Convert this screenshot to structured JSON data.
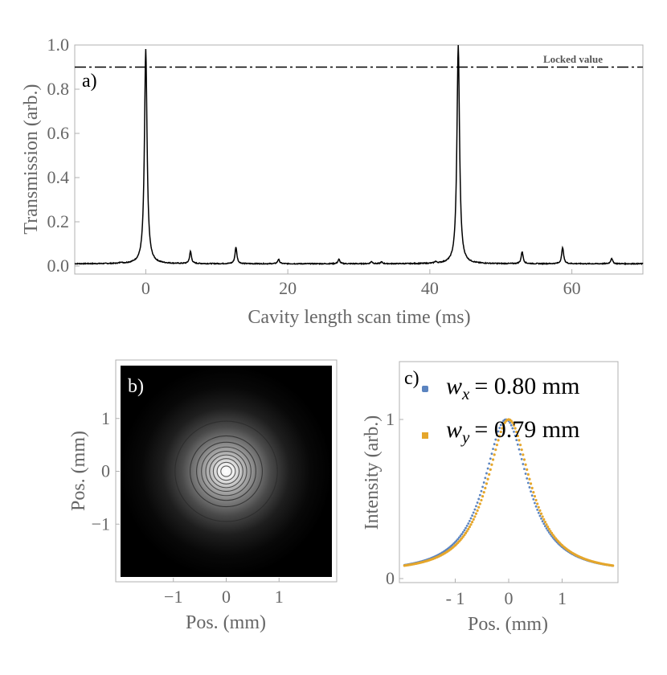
{
  "chart_data": [
    {
      "panel_label": "a)",
      "type": "line",
      "xlabel": "Cavity length scan time (ms)",
      "ylabel": "Transmission (arb.)",
      "xlim": [
        -10,
        70
      ],
      "ylim": [
        0,
        1.0
      ],
      "xticks": [
        0,
        20,
        40,
        60
      ],
      "yticks": [
        "0.0",
        "0.2",
        "0.4",
        "0.6",
        "0.8",
        "1.0"
      ],
      "baseline": 0.01,
      "peaks": [
        {
          "x": -3.5,
          "y": 0.015
        },
        {
          "x": 0,
          "y": 0.98
        },
        {
          "x": 6.3,
          "y": 0.065
        },
        {
          "x": 12.7,
          "y": 0.085
        },
        {
          "x": 18.7,
          "y": 0.03
        },
        {
          "x": 27.2,
          "y": 0.03
        },
        {
          "x": 31.8,
          "y": 0.02
        },
        {
          "x": 33.2,
          "y": 0.018
        },
        {
          "x": 40.8,
          "y": 0.017
        },
        {
          "x": 44,
          "y": 1.0
        },
        {
          "x": 53,
          "y": 0.065
        },
        {
          "x": 58.7,
          "y": 0.085
        },
        {
          "x": 65.6,
          "y": 0.035
        }
      ],
      "reference_line": {
        "y": 0.9,
        "label": "Locked value",
        "style": "dash-dot"
      }
    },
    {
      "panel_label": "b)",
      "type": "heatmap",
      "xlabel": "Pos. (mm)",
      "ylabel": "Pos. (mm)",
      "xlim": [
        -2,
        2
      ],
      "ylim": [
        -2,
        2
      ],
      "xticks": [
        "−1",
        "0",
        "1"
      ],
      "yticks": [
        "1",
        "0",
        "−1"
      ],
      "beam_center": [
        0,
        0
      ],
      "contour_radii_mm": [
        0.1,
        0.17,
        0.24,
        0.31,
        0.38,
        0.46,
        0.55,
        0.67,
        0.95
      ]
    },
    {
      "panel_label": "c)",
      "type": "scatter",
      "xlabel": "Pos. (mm)",
      "ylabel": "Intensity (arb.)",
      "xlim": [
        -2,
        2
      ],
      "ylim": [
        0,
        1.5
      ],
      "xticks": [
        "- 1",
        "0",
        "1"
      ],
      "yticks": [
        "0",
        "1"
      ],
      "series": [
        {
          "name": "w_x = 0.80 mm",
          "sub": "x",
          "value_text": "= 0.80 mm",
          "color": "#5b84c0",
          "center": -0.05,
          "width": 0.8
        },
        {
          "name": "w_y = 0.79 mm",
          "sub": "y",
          "value_text": "= 0.79 mm",
          "color": "#e5a62b",
          "center": 0.0,
          "width": 0.79
        }
      ]
    }
  ]
}
